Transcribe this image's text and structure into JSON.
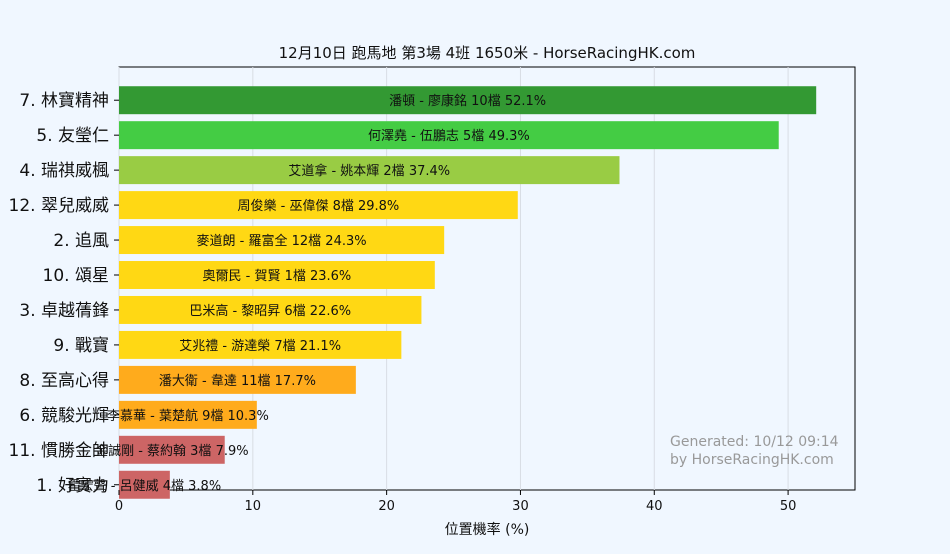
{
  "chart_data": {
    "type": "bar",
    "orientation": "horizontal",
    "title": "12月10日  跑馬地  第3場  4班  1650米 - HorseRacingHK.com",
    "xlabel": "位置機率 (%)",
    "ylabel": "",
    "xlim": [
      0,
      55
    ],
    "xticks": [
      0,
      10,
      20,
      30,
      40,
      50
    ],
    "grid": true,
    "categories": [
      "7. 林寶精神",
      "5. 友瑩仁",
      "4. 瑞祺威楓",
      "12. 翠兒威威",
      "2. 追風",
      "10. 頌星",
      "3. 卓越蒨鋒",
      "9. 戰寶",
      "8. 至高心得",
      "6. 競駿光輝",
      "11. 慣勝金帥",
      "1. 好實力"
    ],
    "values": [
      52.1,
      49.3,
      37.4,
      29.8,
      24.3,
      23.6,
      22.6,
      21.1,
      17.7,
      10.3,
      7.9,
      3.8
    ],
    "bar_labels": [
      "潘頓 - 廖康銘 10檔  52.1%",
      "何澤堯 - 伍鵬志 5檔  49.3%",
      "艾道拿 - 姚本輝 2檔  37.4%",
      "周俊樂 - 巫偉傑 8檔  29.8%",
      "麥道朗 - 羅富全 12檔  24.3%",
      "奧爾民 - 賀賢 1檔  23.6%",
      "巴米高 - 黎昭昇 6檔  22.6%",
      "艾兆禮 - 游達榮 7檔  21.1%",
      "潘大衛 - 韋達 11檔  17.7%",
      "李慕華 - 葉楚航 9檔  10.3%",
      "金誠剛 - 蔡約翰 3檔  7.9%",
      "霍宏聲 - 呂健威 4檔  3.8%"
    ],
    "colors": [
      "#339933",
      "#44cc44",
      "#99cc44",
      "#ffd814",
      "#ffd814",
      "#ffd814",
      "#ffd814",
      "#ffd814",
      "#ffab1c",
      "#ffab1c",
      "#cd6565",
      "#cd6565"
    ]
  },
  "watermark": {
    "line1": "Generated: 10/12 09:14",
    "line2": "by HorseRacingHK.com"
  }
}
